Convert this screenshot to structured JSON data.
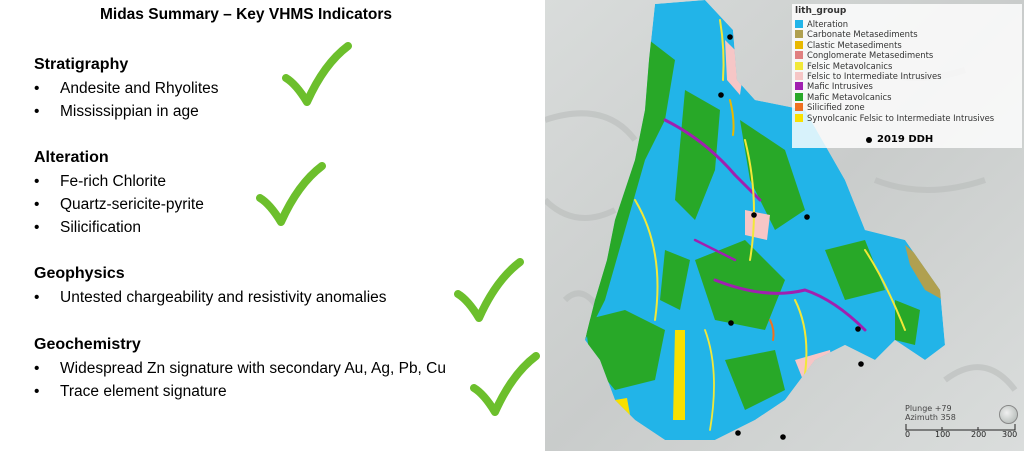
{
  "summary": {
    "title": "Midas Summary – Key VHMS Indicators",
    "sections": [
      {
        "heading": "Stratigraphy",
        "items": [
          "Andesite and Rhyolites",
          "Mississippian in age"
        ]
      },
      {
        "heading": "Alteration",
        "items": [
          "Fe-rich Chlorite",
          "Quartz-sericite-pyrite",
          "Silicification"
        ]
      },
      {
        "heading": "Geophysics",
        "items": [
          "Untested chargeability and resistivity anomalies"
        ]
      },
      {
        "heading": "Geochemistry",
        "items": [
          "Widespread Zn signature with secondary Au, Ag, Pb, Cu",
          "Trace element signature"
        ]
      }
    ],
    "check_color": "#6cbf2c"
  },
  "map": {
    "legend": {
      "title": "lith_group",
      "items": [
        {
          "label": "Alteration",
          "color": "#22b4e8"
        },
        {
          "label": "Carbonate Metasediments",
          "color": "#b0a050"
        },
        {
          "label": "Clastic Metasediments",
          "color": "#e8b800"
        },
        {
          "label": "Conglomerate Metasediments",
          "color": "#e08080"
        },
        {
          "label": "Felsic Metavolcanics",
          "color": "#f2e838"
        },
        {
          "label": "Felsic to Intermediate Intrusives",
          "color": "#f6c6c6"
        },
        {
          "label": "Mafic Intrusives",
          "color": "#a020b0"
        },
        {
          "label": "Mafic Metavolcanics",
          "color": "#28a828"
        },
        {
          "label": "Silicified zone",
          "color": "#f07020"
        },
        {
          "label": "Synvolcanic Felsic to Intermediate Intrusives",
          "color": "#f8e000"
        }
      ]
    },
    "ddh_label": "2019 DDH",
    "plunge": "Plunge +79",
    "azimuth": "Azimuth 358",
    "scale_labels": [
      "0",
      "100",
      "200",
      "300"
    ]
  }
}
